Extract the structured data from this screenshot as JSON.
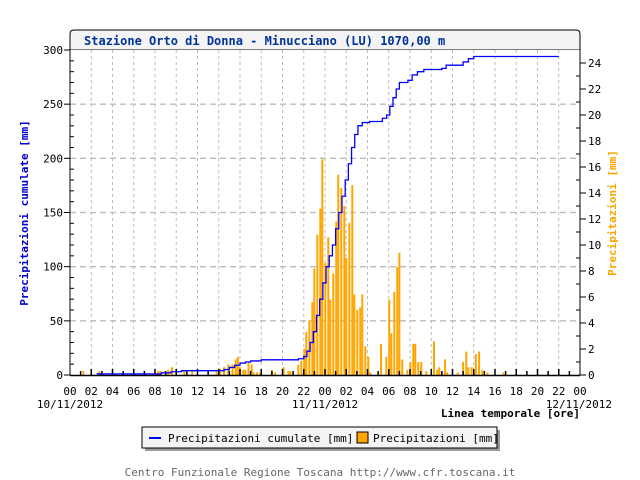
{
  "chart_data": {
    "type": "bar+line",
    "title": "Stazione Orto di Donna - Minucciano (LU) 1070,00 m",
    "xlabel": "Linea temporale [ore]",
    "ylabel_left": "Precipitazioni cumulate [mm]",
    "ylabel_right": "Precipitazioni [mm]",
    "x_unit": "hours since 10/11/2012 00:00",
    "xlim": [
      0,
      48
    ],
    "ylim_left": [
      0,
      300
    ],
    "ylim_right": [
      0,
      25
    ],
    "x_tick_labels": [
      "00",
      "02",
      "04",
      "06",
      "08",
      "10",
      "12",
      "14",
      "16",
      "18",
      "20",
      "22",
      "00",
      "02",
      "04",
      "06",
      "08",
      "10",
      "12",
      "14",
      "16",
      "18",
      "20",
      "22",
      "00"
    ],
    "date_labels": [
      "10/11/2012",
      "11/11/2012",
      "12/11/2012"
    ],
    "left_tick_labels": [
      "0",
      "50",
      "100",
      "150",
      "200",
      "250",
      "300"
    ],
    "right_tick_labels": [
      "0",
      "2",
      "4",
      "6",
      "8",
      "10",
      "12",
      "14",
      "16",
      "18",
      "20",
      "22",
      "24"
    ],
    "grid": true,
    "legend_position": "bottom",
    "colors": {
      "cumulative": "#0000ff",
      "bars": "#ffa500",
      "title": "#003399"
    },
    "series": [
      {
        "name": "Precipitazioni cumulate [mm]",
        "type": "step-line",
        "axis": "left",
        "points": [
          [
            2.5,
            1
          ],
          [
            8.5,
            1
          ],
          [
            8.6,
            2
          ],
          [
            9.5,
            3
          ],
          [
            10.5,
            4
          ],
          [
            14,
            4
          ],
          [
            14.5,
            5
          ],
          [
            15,
            7
          ],
          [
            15.5,
            9
          ],
          [
            16,
            11
          ],
          [
            16.5,
            12
          ],
          [
            17,
            13
          ],
          [
            18,
            14
          ],
          [
            21.5,
            15
          ],
          [
            22,
            17
          ],
          [
            22.3,
            22
          ],
          [
            22.6,
            30
          ],
          [
            22.9,
            40
          ],
          [
            23.2,
            55
          ],
          [
            23.5,
            70
          ],
          [
            23.8,
            85
          ],
          [
            24.1,
            100
          ],
          [
            24.4,
            110
          ],
          [
            24.7,
            120
          ],
          [
            25,
            135
          ],
          [
            25.3,
            150
          ],
          [
            25.6,
            165
          ],
          [
            25.9,
            180
          ],
          [
            26.2,
            195
          ],
          [
            26.5,
            210
          ],
          [
            26.8,
            222
          ],
          [
            27.1,
            230
          ],
          [
            27.5,
            233
          ],
          [
            28.2,
            234
          ],
          [
            29.4,
            237
          ],
          [
            29.8,
            240
          ],
          [
            30.1,
            248
          ],
          [
            30.4,
            256
          ],
          [
            30.7,
            264
          ],
          [
            31,
            270
          ],
          [
            31.8,
            272
          ],
          [
            32.2,
            277
          ],
          [
            32.7,
            280
          ],
          [
            33.3,
            282
          ],
          [
            35,
            283
          ],
          [
            35.4,
            286
          ],
          [
            36.5,
            286
          ],
          [
            37,
            289
          ],
          [
            37.5,
            292
          ],
          [
            38,
            294
          ],
          [
            46,
            294
          ]
        ]
      },
      {
        "name": "Precipitazioni [mm]",
        "type": "bar",
        "axis": "right",
        "points": [
          [
            1.25,
            0.3
          ],
          [
            2.76,
            0.3
          ],
          [
            8.3,
            0.3
          ],
          [
            8.5,
            0.3
          ],
          [
            9.0,
            0.3
          ],
          [
            9.25,
            0.4
          ],
          [
            9.6,
            0.6
          ],
          [
            10.0,
            0.4
          ],
          [
            10.75,
            0.3
          ],
          [
            11.5,
            0.3
          ],
          [
            13.8,
            0.3
          ],
          [
            14.1,
            0.5
          ],
          [
            14.5,
            0.6
          ],
          [
            14.9,
            0.8
          ],
          [
            15.3,
            0.8
          ],
          [
            15.6,
            1.2
          ],
          [
            15.8,
            1.4
          ],
          [
            16.0,
            0.6
          ],
          [
            16.3,
            0.4
          ],
          [
            16.5,
            0.4
          ],
          [
            16.8,
            1.0
          ],
          [
            17.1,
            0.8
          ],
          [
            17.3,
            0.2
          ],
          [
            17.6,
            0.2
          ],
          [
            17.9,
            0.2
          ],
          [
            19.0,
            0.4
          ],
          [
            19.3,
            0.2
          ],
          [
            20.1,
            0.6
          ],
          [
            20.55,
            0.3
          ],
          [
            20.74,
            0.3
          ],
          [
            21.49,
            0.8
          ],
          [
            21.77,
            1.1
          ],
          [
            22.05,
            2.0
          ],
          [
            22.24,
            3.3
          ],
          [
            22.53,
            4.2
          ],
          [
            22.81,
            5.6
          ],
          [
            23.0,
            8.2
          ],
          [
            23.28,
            10.8
          ],
          [
            23.56,
            12.8
          ],
          [
            23.75,
            16.6
          ],
          [
            24.03,
            8.6
          ],
          [
            24.31,
            10.6
          ],
          [
            24.5,
            5.8
          ],
          [
            24.78,
            7.8
          ],
          [
            25.06,
            11.8
          ],
          [
            25.25,
            15.4
          ],
          [
            25.53,
            14.4
          ],
          [
            25.82,
            13
          ],
          [
            26.0,
            9
          ],
          [
            26.29,
            11.7
          ],
          [
            26.57,
            14.6
          ],
          [
            26.76,
            6.2
          ],
          [
            27.04,
            5
          ],
          [
            27.32,
            5.2
          ],
          [
            27.51,
            6.2
          ],
          [
            27.79,
            2.2
          ],
          [
            28.08,
            1.4
          ],
          [
            28.26,
            0.2
          ],
          [
            29.27,
            2.4
          ],
          [
            29.77,
            1.4
          ],
          [
            30.05,
            5.8
          ],
          [
            30.24,
            3.2
          ],
          [
            30.52,
            6.4
          ],
          [
            30.8,
            8.3
          ],
          [
            31.0,
            9.4
          ],
          [
            31.27,
            1.2
          ],
          [
            31.75,
            0.4
          ],
          [
            32.03,
            1.0
          ],
          [
            32.31,
            2.4
          ],
          [
            32.5,
            2.4
          ],
          [
            32.78,
            1.0
          ],
          [
            33.06,
            1.0
          ],
          [
            33.53,
            0.3
          ],
          [
            34.26,
            2.6
          ],
          [
            34.57,
            0.4
          ],
          [
            34.76,
            0.6
          ],
          [
            35.3,
            1.2
          ],
          [
            35.5,
            0.2
          ],
          [
            36.5,
            0.2
          ],
          [
            37.0,
            1.0
          ],
          [
            37.3,
            1.8
          ],
          [
            37.5,
            0.6
          ],
          [
            37.8,
            0.6
          ],
          [
            38.2,
            1.6
          ],
          [
            38.5,
            1.8
          ],
          [
            38.8,
            0.4
          ],
          [
            39.3,
            0.2
          ],
          [
            40.8,
            0.2
          ]
        ]
      }
    ]
  },
  "legend": {
    "cumulative_label": "Precipitazioni cumulate [mm]",
    "bars_label": "Precipitazioni [mm]"
  },
  "footer": "Centro Funzionale Regione Toscana http://www.cfr.toscana.it"
}
